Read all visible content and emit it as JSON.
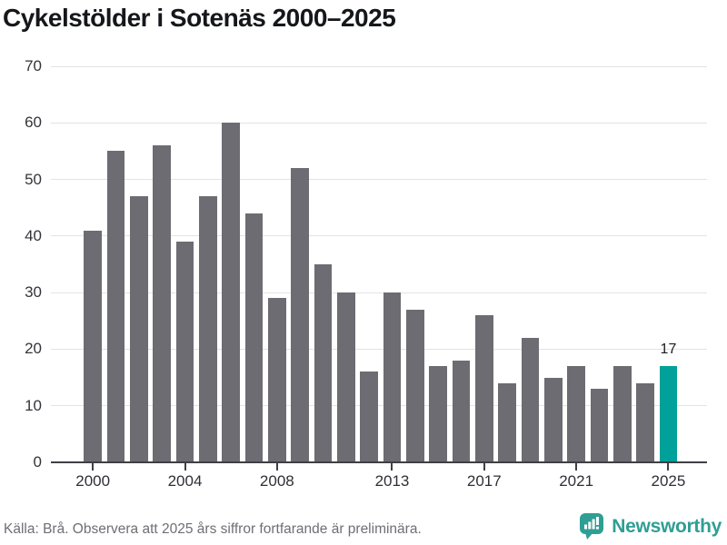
{
  "title": "Cykelstölder i Sotenäs 2000–2025",
  "chart_data": {
    "type": "bar",
    "title": "Cykelstölder i Sotenäs 2000–2025",
    "categories": [
      "2000",
      "2001",
      "2002",
      "2003",
      "2004",
      "2005",
      "2006",
      "2007",
      "2008",
      "2009",
      "2010",
      "2011",
      "2012",
      "2013",
      "2014",
      "2015",
      "2016",
      "2017",
      "2018",
      "2019",
      "2020",
      "2021",
      "2022",
      "2023",
      "2024",
      "2025"
    ],
    "values": [
      41,
      55,
      47,
      56,
      39,
      47,
      60,
      44,
      29,
      52,
      35,
      30,
      16,
      30,
      27,
      17,
      18,
      26,
      14,
      22,
      15,
      17,
      13,
      17,
      14,
      17
    ],
    "ylim": [
      0,
      70
    ],
    "yticks": [
      0,
      10,
      20,
      30,
      40,
      50,
      60,
      70
    ],
    "xticks": [
      "2000",
      "2004",
      "2008",
      "2013",
      "2017",
      "2021",
      "2025"
    ],
    "grid": true,
    "legend": "none",
    "bar_color": "#6d6c72",
    "grid_color": "#e3e3e3",
    "axis_color": "#3f4045",
    "highlight": {
      "category": "2025",
      "value_label": "17",
      "color": "#00a19a"
    }
  },
  "footer": {
    "source_note": "Källa: Brå. Observera att 2025 års siffror fortfarande är preliminära.",
    "brand": "Newsworthy",
    "brand_color": "#2f9e94"
  },
  "icons": {
    "newsworthy_logo": "speech-bubble-bar-chart-icon"
  }
}
